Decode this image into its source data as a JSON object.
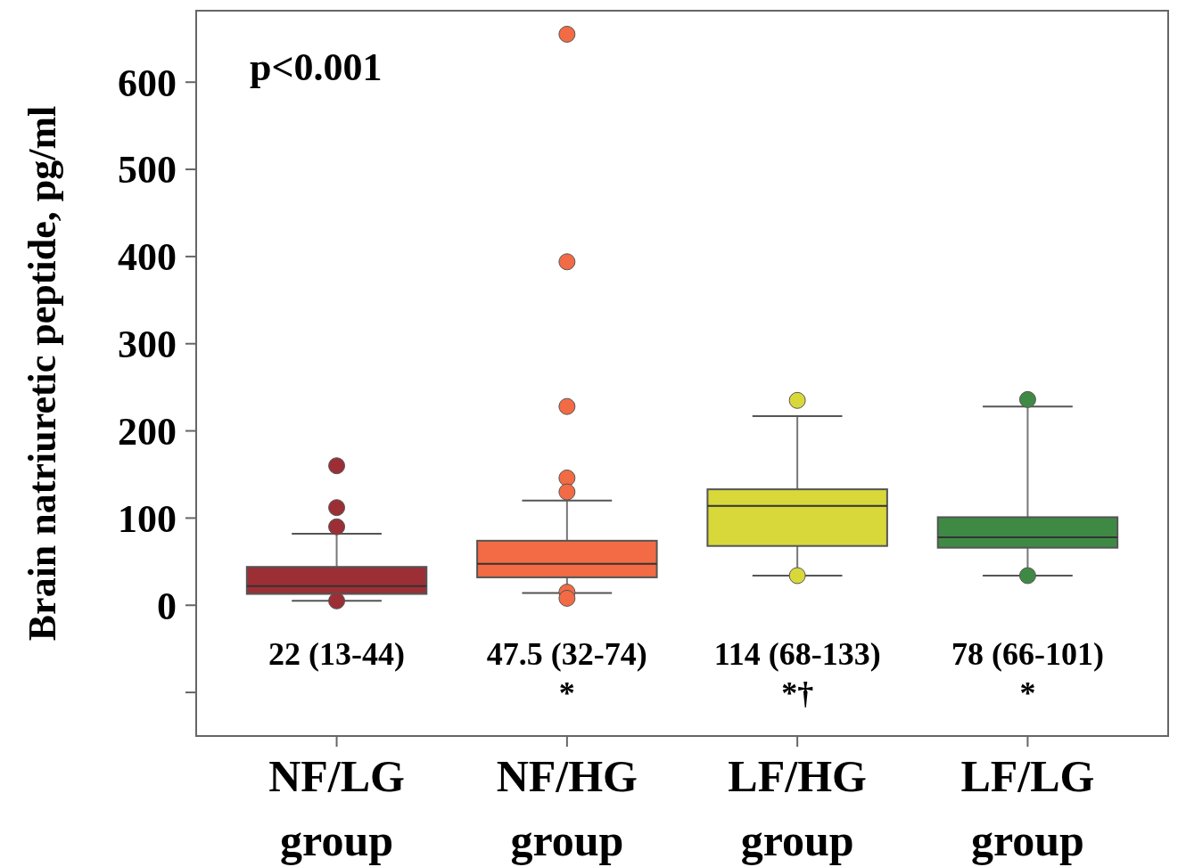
{
  "chart_data": {
    "type": "box",
    "ylabel": "Brain natriuretic peptide, pg/ml",
    "categories": [
      "NF/LG group",
      "NF/HG group",
      "LF/HG group",
      "LF/LG group"
    ],
    "colors": [
      "#9b2f35",
      "#f26b45",
      "#d9d83a",
      "#3e8a45"
    ],
    "boxes": [
      {
        "low": 5,
        "q1": 13,
        "median": 22,
        "q3": 44,
        "high": 82,
        "outliers": [
          160,
          112,
          90,
          5
        ]
      },
      {
        "low": 14,
        "q1": 32,
        "median": 47.5,
        "q3": 74,
        "high": 120,
        "outliers": [
          655,
          394,
          228,
          146,
          130,
          15,
          8
        ]
      },
      {
        "low": 34,
        "q1": 68,
        "median": 114,
        "q3": 133,
        "high": 217,
        "outliers": [
          235,
          34
        ]
      },
      {
        "low": 34,
        "q1": 66,
        "median": 78,
        "q3": 101,
        "high": 228,
        "outliers": [
          236,
          34
        ]
      }
    ],
    "ylim": [
      -150,
      682
    ],
    "yticks": [
      {
        "value": -100,
        "label": null
      },
      0,
      100,
      200,
      300,
      400,
      500,
      600
    ],
    "annotations": [
      "p<0.001",
      "22 (13-44)",
      "47.5 (32-74)",
      "114 (68-133)",
      "78 (66-101)",
      "*",
      "*†",
      "*"
    ]
  }
}
